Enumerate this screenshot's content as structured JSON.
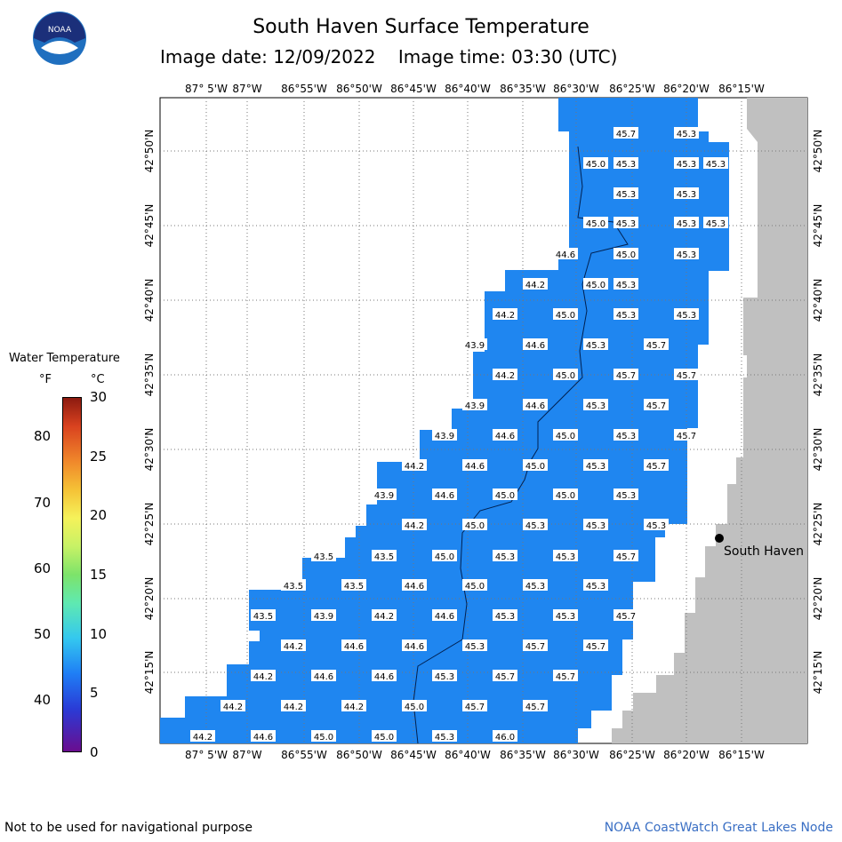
{
  "header": {
    "title": "South Haven Surface Temperature",
    "image_date": "Image date: 12/09/2022",
    "image_time": "Image time: 03:30 (UTC)"
  },
  "logo_text": "NOAA",
  "legend": {
    "title": "Water Temperature",
    "unit_f": "°F",
    "unit_c": "°C",
    "f_ticks": [
      "40",
      "50",
      "60",
      "70",
      "80"
    ],
    "c_ticks": [
      "0",
      "5",
      "10",
      "15",
      "20",
      "25",
      "30"
    ]
  },
  "longitude_labels": [
    "87° 5'W",
    "87°W",
    "86°55'W",
    "86°50'W",
    "86°45'W",
    "86°40'W",
    "86°35'W",
    "86°30'W",
    "86°25'W",
    "86°20'W",
    "86°15'W"
  ],
  "latitude_labels": [
    "42°50'N",
    "42°45'N",
    "42°40'N",
    "42°35'N",
    "42°30'N",
    "42°25'N",
    "42°20'N",
    "42°15'N"
  ],
  "place_label": "South Haven",
  "temperatures": [
    {
      "row": 0,
      "vals": [
        [
          "45.7",
          6
        ],
        [
          "45.3",
          7
        ]
      ]
    },
    {
      "row": 1,
      "vals": [
        [
          "45.0",
          5
        ],
        [
          "45.3",
          6
        ],
        [
          "45.3",
          7
        ]
      ]
    },
    {
      "row": 2,
      "vals": [
        [
          "45.3",
          6
        ],
        [
          "45.3",
          7
        ]
      ]
    },
    {
      "row": 3,
      "vals": [
        [
          "45.0",
          5
        ],
        [
          "45.3",
          6
        ],
        [
          "45.3",
          7
        ]
      ]
    },
    {
      "row": 4,
      "vals": [
        [
          "44.6",
          4
        ],
        [
          "45.0",
          6
        ],
        [
          "45.3",
          7
        ]
      ]
    },
    {
      "row": 5,
      "vals": [
        [
          "44.2",
          3
        ],
        [
          "45.0",
          5
        ],
        [
          "45.3",
          6
        ]
      ]
    }
  ],
  "footer": {
    "disclaimer": "Not to be used for navigational purpose",
    "credit": "NOAA CoastWatch Great Lakes Node"
  },
  "colors": {
    "water": "#1f86f0",
    "land": "#c0c0c0",
    "grid": "#888888"
  }
}
